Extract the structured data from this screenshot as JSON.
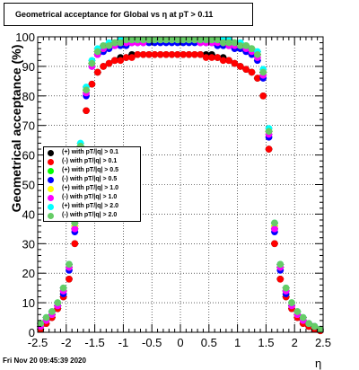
{
  "header": {
    "title": "Geometrical acceptance for Global vs    η at pT > 0.11"
  },
  "footer": {
    "timestamp": "Fri Nov 20 09:45:39 2020"
  },
  "colors": {
    "series": [
      "#000000",
      "#ff0000",
      "#00ff00",
      "#0000ff",
      "#ffff00",
      "#ff00ff",
      "#00ffff",
      "#66cc66"
    ]
  },
  "chart_data": {
    "type": "scatter",
    "title": "Geometrical acceptance for Global vs    η at pT > 0.11",
    "xlabel": "η",
    "ylabel": "Geometrical acceptance (%)",
    "xlim": [
      -2.5,
      2.5
    ],
    "ylim": [
      0,
      100
    ],
    "xticks": [
      -2.5,
      -2,
      -1.5,
      -1,
      -0.5,
      0,
      0.5,
      1,
      1.5,
      2,
      2.5
    ],
    "yticks": [
      0,
      10,
      20,
      30,
      40,
      50,
      60,
      70,
      80,
      90,
      100
    ],
    "x": [
      -2.45,
      -2.35,
      -2.25,
      -2.15,
      -2.05,
      -1.95,
      -1.85,
      -1.75,
      -1.65,
      -1.55,
      -1.45,
      -1.35,
      -1.25,
      -1.15,
      -1.05,
      -0.95,
      -0.85,
      -0.75,
      -0.65,
      -0.55,
      -0.45,
      -0.35,
      -0.25,
      -0.15,
      -0.05,
      0.05,
      0.15,
      0.25,
      0.35,
      0.45,
      0.55,
      0.65,
      0.75,
      0.85,
      0.95,
      1.05,
      1.15,
      1.25,
      1.35,
      1.45,
      1.55,
      1.65,
      1.75,
      1.85,
      1.95,
      2.05,
      2.15,
      2.25,
      2.35,
      2.45
    ],
    "series": [
      {
        "name": "(+) with pT/|q| > 0.1",
        "values": [
          1,
          3,
          5,
          8,
          12,
          18,
          30,
          55,
          75,
          84,
          88,
          90,
          91,
          92,
          93,
          93,
          94,
          94,
          94,
          94,
          94,
          94,
          94,
          94,
          94,
          94,
          94,
          94,
          94,
          94,
          94,
          93,
          93,
          92,
          91,
          90,
          89,
          88,
          86,
          80,
          62,
          30,
          18,
          12,
          8,
          5,
          3,
          2,
          1,
          0.5
        ]
      },
      {
        "name": "(-) with pT/|q| > 0.1",
        "values": [
          1,
          3,
          5,
          8,
          12,
          18,
          30,
          55,
          75,
          84,
          88,
          90,
          91,
          92,
          92,
          93,
          93,
          94,
          94,
          94,
          94,
          94,
          94,
          94,
          94,
          94,
          94,
          94,
          94,
          93,
          93,
          93,
          92,
          92,
          91,
          90,
          89,
          88,
          86,
          80,
          62,
          30,
          18,
          12,
          8,
          5,
          3,
          2,
          1,
          0.5
        ]
      },
      {
        "name": "(+) with pT/|q| > 0.5",
        "values": [
          2,
          4,
          6,
          9,
          14,
          22,
          35,
          62,
          82,
          91,
          95,
          96,
          97,
          98,
          98,
          98,
          99,
          99,
          99,
          99,
          99,
          99,
          99,
          99,
          99,
          99,
          99,
          99,
          99,
          99,
          99,
          99,
          98,
          98,
          98,
          97,
          97,
          96,
          94,
          88,
          68,
          35,
          22,
          14,
          9,
          6,
          4,
          3,
          2,
          1
        ]
      },
      {
        "name": "(-) with pT/|q| > 0.5",
        "values": [
          2,
          4,
          6,
          9,
          13,
          21,
          34,
          60,
          80,
          90,
          94,
          95,
          96,
          97,
          97,
          97,
          98,
          98,
          98,
          98,
          98,
          98,
          98,
          98,
          98,
          98,
          98,
          98,
          98,
          98,
          98,
          97,
          97,
          97,
          96,
          96,
          95,
          94,
          92,
          86,
          66,
          34,
          21,
          13,
          9,
          6,
          4,
          3,
          2,
          1
        ]
      },
      {
        "name": "(+) with pT/|q| > 1.0",
        "values": [
          2,
          4,
          6,
          10,
          14,
          22,
          36,
          63,
          82,
          91,
          95,
          96,
          97,
          98,
          98,
          98,
          99,
          99,
          99,
          99,
          99,
          99,
          99,
          99,
          99,
          99,
          99,
          99,
          99,
          99,
          99,
          99,
          98,
          98,
          98,
          97,
          97,
          96,
          94,
          88,
          68,
          36,
          22,
          14,
          10,
          6,
          4,
          3,
          2,
          1
        ]
      },
      {
        "name": "(-) with pT/|q| > 1.0",
        "values": [
          2,
          4,
          6,
          9,
          14,
          22,
          35,
          62,
          81,
          90,
          94,
          96,
          97,
          97,
          98,
          98,
          98,
          98,
          98,
          99,
          99,
          99,
          99,
          99,
          99,
          99,
          99,
          99,
          98,
          98,
          98,
          98,
          98,
          97,
          97,
          97,
          96,
          95,
          93,
          87,
          67,
          35,
          22,
          14,
          9,
          6,
          4,
          3,
          2,
          1
        ]
      },
      {
        "name": "(+) with pT/|q| > 2.0",
        "values": [
          3,
          5,
          7,
          10,
          15,
          23,
          37,
          64,
          83,
          92,
          96,
          97,
          98,
          98,
          99,
          99,
          99,
          99,
          99,
          99,
          99,
          99,
          99,
          99,
          99,
          99,
          99,
          99,
          99,
          99,
          99,
          99,
          99,
          99,
          98,
          98,
          97,
          96,
          95,
          89,
          69,
          37,
          23,
          15,
          10,
          7,
          5,
          3,
          2,
          1
        ]
      },
      {
        "name": "(-) with pT/|q| > 2.0",
        "values": [
          3,
          5,
          7,
          10,
          15,
          23,
          37,
          63,
          82,
          91,
          95,
          97,
          97,
          98,
          98,
          99,
          99,
          99,
          99,
          99,
          99,
          99,
          99,
          99,
          99,
          99,
          99,
          99,
          99,
          99,
          99,
          99,
          98,
          98,
          98,
          97,
          97,
          96,
          94,
          88,
          68,
          37,
          23,
          15,
          10,
          7,
          5,
          3,
          2,
          1
        ]
      }
    ]
  }
}
